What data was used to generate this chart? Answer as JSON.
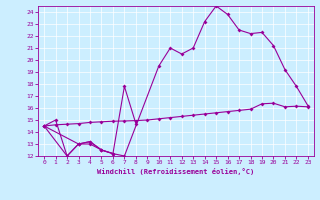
{
  "xlabel": "Windchill (Refroidissement éolien,°C)",
  "background_color": "#cceeff",
  "line_color": "#990099",
  "xlim": [
    -0.5,
    23.5
  ],
  "ylim": [
    12,
    24.5
  ],
  "yticks": [
    12,
    13,
    14,
    15,
    16,
    17,
    18,
    19,
    20,
    21,
    22,
    23,
    24
  ],
  "xticks": [
    0,
    1,
    2,
    3,
    4,
    5,
    6,
    7,
    8,
    9,
    10,
    11,
    12,
    13,
    14,
    15,
    16,
    17,
    18,
    19,
    20,
    21,
    22,
    23
  ],
  "series": [
    {
      "x": [
        0,
        1,
        2,
        3,
        4,
        5,
        6
      ],
      "y": [
        14.5,
        15.0,
        12.0,
        13.0,
        13.0,
        12.5,
        12.2
      ]
    },
    {
      "x": [
        0,
        3,
        4,
        5,
        6,
        7,
        8
      ],
      "y": [
        14.5,
        13.0,
        13.2,
        12.5,
        12.2,
        17.8,
        14.7
      ]
    },
    {
      "x": [
        0,
        2,
        3,
        4,
        5,
        6,
        7,
        10,
        11,
        12,
        13,
        14,
        15,
        16,
        17,
        18,
        19,
        20,
        21,
        22,
        23
      ],
      "y": [
        14.5,
        12.0,
        13.0,
        13.2,
        12.5,
        12.2,
        12.0,
        19.5,
        21.0,
        20.5,
        21.0,
        23.2,
        24.5,
        23.8,
        22.5,
        22.2,
        22.3,
        21.2,
        19.2,
        17.8,
        16.2
      ]
    },
    {
      "x": [
        0,
        1,
        2,
        3,
        4,
        5,
        6,
        7,
        8,
        9,
        10,
        11,
        12,
        13,
        14,
        15,
        16,
        17,
        18,
        19,
        20,
        21,
        22,
        23
      ],
      "y": [
        14.5,
        14.6,
        14.65,
        14.7,
        14.8,
        14.85,
        14.9,
        14.92,
        14.95,
        15.0,
        15.1,
        15.2,
        15.3,
        15.4,
        15.5,
        15.6,
        15.7,
        15.8,
        15.9,
        16.35,
        16.4,
        16.1,
        16.15,
        16.1
      ]
    }
  ]
}
